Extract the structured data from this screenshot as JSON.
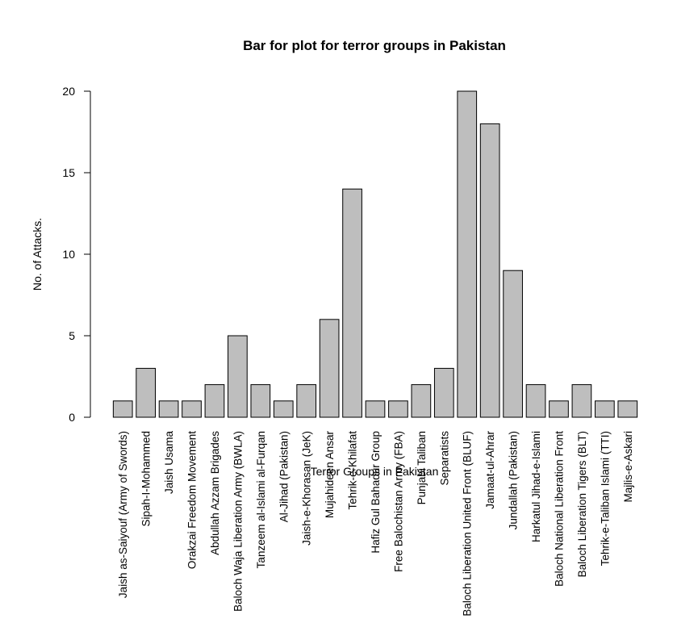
{
  "chart_data": {
    "type": "bar",
    "title": "Bar for plot for terror groups in Pakistan",
    "xlabel": "Terror Groups in Pakistan",
    "ylabel": "No. of Attacks.",
    "ylim": [
      0,
      20
    ],
    "yticks": [
      0,
      5,
      10,
      15,
      20
    ],
    "grid": false,
    "bar_color": "#bebebe",
    "border_color": "#000000",
    "categories": [
      "Jaish as-Saiyouf (Army of Swords)",
      "Sipah-I-Mohammed",
      "Jaish Usama",
      "Orakzai Freedom Movement",
      "Abdullah Azzam Brigades",
      "Baloch Waja Liberation Army (BWLA)",
      "Tanzeem al-Islami al-Furqan",
      "Al-Jihad (Pakistan)",
      "Jaish-e-Khorasan (JeK)",
      "Mujahideen Ansar",
      "Tehrik-e-Khilafat",
      "Hafiz Gul Bahadur Group",
      "Free Balochistan Army (FBA)",
      "Punjabi Taliban",
      "Separatists",
      "Baloch Liberation United Front (BLUF)",
      "Jamaat-ul-Ahrar",
      "Jundallah (Pakistan)",
      "Harkatul Jihad-e-Islami",
      "Baloch National Liberation Front",
      "Baloch Liberation Tigers (BLT)",
      "Tehrik-e-Taliban Islami (TTI)",
      "Majlis-e-Askari"
    ],
    "values": [
      1,
      3,
      1,
      1,
      2,
      5,
      2,
      1,
      2,
      6,
      14,
      1,
      1,
      2,
      3,
      20,
      18,
      9,
      2,
      1,
      2,
      1,
      1
    ]
  }
}
